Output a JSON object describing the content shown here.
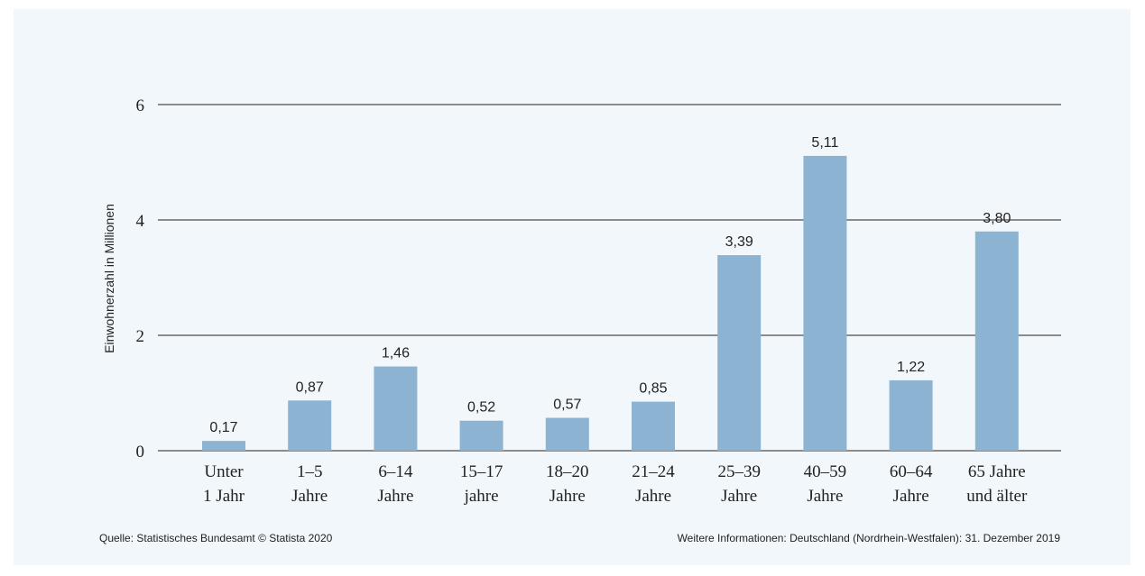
{
  "chart_data": {
    "type": "bar",
    "categories": [
      [
        "Unter",
        "1 Jahr"
      ],
      [
        "1–5",
        "Jahre"
      ],
      [
        "6–14",
        "Jahre"
      ],
      [
        "15–17",
        "jahre"
      ],
      [
        "18–20",
        "Jahre"
      ],
      [
        "21–24",
        "Jahre"
      ],
      [
        "25–39",
        "Jahre"
      ],
      [
        "40–59",
        "Jahre"
      ],
      [
        "60–64",
        "Jahre"
      ],
      [
        "65 Jahre",
        "und älter"
      ]
    ],
    "values": [
      0.17,
      0.87,
      1.46,
      0.52,
      0.57,
      0.85,
      3.39,
      5.11,
      1.22,
      3.8
    ],
    "value_labels": [
      "0,17",
      "0,87",
      "1,46",
      "0,52",
      "0,57",
      "0,85",
      "3,39",
      "5,11",
      "1,22",
      "3,80"
    ],
    "ylabel": "Einwohnerzahl in Millionen",
    "ylim": [
      0,
      6
    ],
    "yticks": [
      0,
      2,
      4,
      6
    ],
    "grid": true,
    "bar_color": "#8db3d3"
  },
  "footer": {
    "source": "Quelle: Statistisches Bundesamt © Statista 2020",
    "info": "Weitere Informationen: Deutschland (Nordrhein-Westfalen): 31. Dezember 2019"
  }
}
